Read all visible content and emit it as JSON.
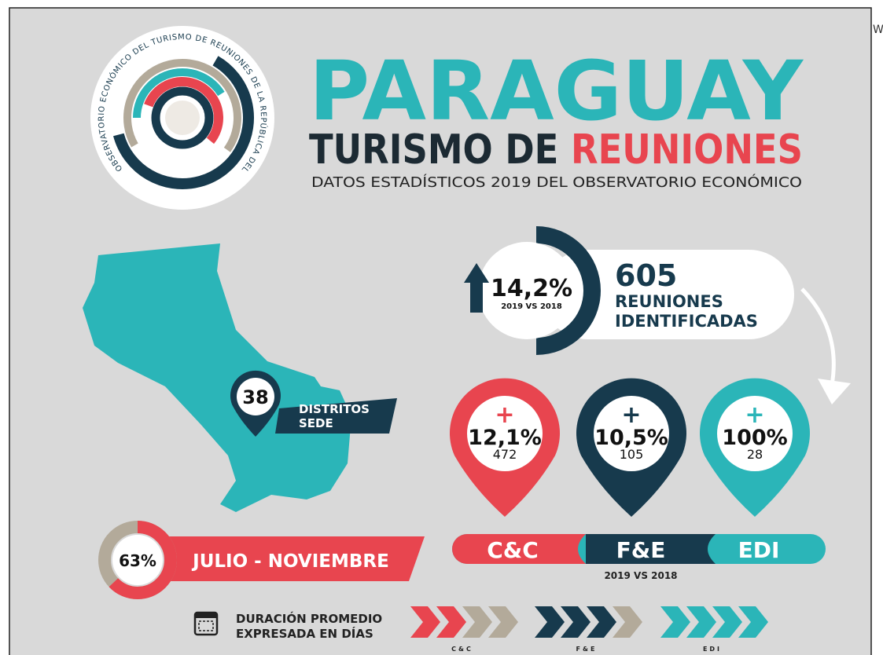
{
  "corner_text": "W",
  "logo": {
    "ring_text": "OBSERVATORIO ECONÓMICO DEL TURISMO DE REUNIONES DE LA REPÚBLICA DEL PARAGUAY."
  },
  "header": {
    "title": "PARAGUAY",
    "subtitle_dark": "TURISMO DE",
    "subtitle_red": "REUNIONES",
    "caption": "DATOS ESTADÍSTICOS 2019 DEL OBSERVATORIO ECONÓMICO"
  },
  "growth": {
    "value": "14,2%",
    "note": "2019 VS 2018"
  },
  "meetings": {
    "count": "605",
    "line1": "REUNIONES",
    "line2": "IDENTIFICADAS"
  },
  "districts": {
    "count": "38",
    "line1": "DISTRITOS",
    "line2": "SEDE"
  },
  "pins": [
    {
      "sign": "+",
      "percent": "12,1%",
      "count": "472"
    },
    {
      "sign": "+",
      "percent": "10,5%",
      "count": "105"
    },
    {
      "sign": "+",
      "percent": "100%",
      "count": "28"
    }
  ],
  "segments": {
    "labels": [
      "C&C",
      "F&E",
      "EDI"
    ],
    "note": "2019 VS 2018"
  },
  "season": {
    "percent": "63%",
    "label": "JULIO - NOVIEMBRE"
  },
  "duration": {
    "line1": "DURACIÓN PROMEDIO",
    "line2": "EXPRESADA EN DÍAS",
    "labels": [
      "C&C",
      "F&E",
      "EDI"
    ]
  }
}
